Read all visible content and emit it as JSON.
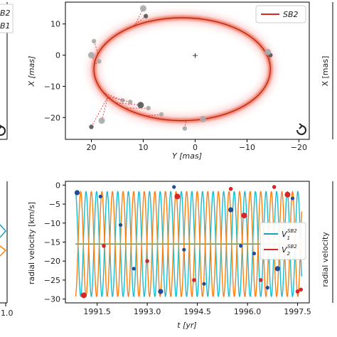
{
  "chart_data": [
    {
      "id": "orbit",
      "type": "scatter",
      "title": "",
      "xlabel": "Y [mas]",
      "ylabel": "X [mas]",
      "xlim": [
        25,
        -22
      ],
      "ylim": [
        -27,
        17
      ],
      "xticks": [
        20,
        10,
        0,
        -10,
        -20
      ],
      "xtick_labels": [
        "20",
        "10",
        "0",
        "−10",
        "−20"
      ],
      "yticks": [
        10,
        0,
        -10,
        -20
      ],
      "ytick_labels": [
        "10",
        "0",
        "−10",
        "−20"
      ],
      "legend": {
        "position": "top-right",
        "entries": [
          {
            "name": "SB2",
            "color": "#d62728"
          }
        ]
      },
      "orbit_color": "#d62728",
      "center": {
        "x": 0,
        "y": 0,
        "symbol": "+"
      },
      "ellipse": {
        "cx": 2.5,
        "cy": -4.5,
        "a": 16.5,
        "b": 16.5,
        "ry": 16.5,
        "rx": 17,
        "tilt_deg": 0
      },
      "points": [
        {
          "x": 10.0,
          "y": 15.0
        },
        {
          "x": 9.5,
          "y": 12.5
        },
        {
          "x": 19.5,
          "y": 4.5
        },
        {
          "x": 20.0,
          "y": 0.0
        },
        {
          "x": 18.5,
          "y": -2.0
        },
        {
          "x": -14.5,
          "y": 0.0
        },
        {
          "x": -14.0,
          "y": 1.0
        },
        {
          "x": 14.0,
          "y": -14.5
        },
        {
          "x": 12.5,
          "y": -15.0
        },
        {
          "x": 10.5,
          "y": -16.0
        },
        {
          "x": 9.0,
          "y": -17.0
        },
        {
          "x": 6.5,
          "y": -19.0
        },
        {
          "x": 18.0,
          "y": -21.0
        },
        {
          "x": 20.0,
          "y": -23.0
        },
        {
          "x": 2.0,
          "y": -23.5
        },
        {
          "x": -1.5,
          "y": -20.5
        }
      ]
    },
    {
      "id": "rv",
      "type": "line",
      "title": "",
      "xlabel": "t [yr]",
      "ylabel": "radial velocity [km/s]",
      "xlim": [
        1990.55,
        1997.85
      ],
      "ylim": [
        -31,
        1
      ],
      "xticks": [
        1991.5,
        1993.0,
        1994.5,
        1996.0,
        1997.5
      ],
      "xtick_labels": [
        "1991.5",
        "1993.0",
        "1994.5",
        "1996.0",
        "1997.5"
      ],
      "yticks": [
        0,
        -5,
        -10,
        -15,
        -20,
        -25,
        -30
      ],
      "ytick_labels": [
        "0",
        "−5",
        "−10",
        "−15",
        "−20",
        "−25",
        "−30"
      ],
      "legend": {
        "position": "right",
        "entries": [
          {
            "name": "V",
            "sub": "1",
            "sup": "SB2",
            "color": "#17a2b8"
          },
          {
            "name": "V",
            "sub": "2",
            "sup": "SB2",
            "color": "#d62728"
          }
        ]
      },
      "series": [
        {
          "name": "V1",
          "color": "#17becf",
          "t0": 1990.85,
          "period": 0.317,
          "mean": -15.5,
          "amp": 13.8,
          "phase": 0.0
        },
        {
          "name": "V2",
          "color": "#ff7f0e",
          "t0": 1990.85,
          "period": 0.317,
          "mean": -15.5,
          "amp": 13.8,
          "phase": 0.5
        }
      ],
      "points_v1": [
        {
          "x": 1990.9,
          "y": -2.0
        },
        {
          "x": 1991.6,
          "y": -3.0
        },
        {
          "x": 1992.2,
          "y": -10.5
        },
        {
          "x": 1992.6,
          "y": -22.0
        },
        {
          "x": 1993.4,
          "y": -28.0
        },
        {
          "x": 1993.8,
          "y": -0.5
        },
        {
          "x": 1994.1,
          "y": -17.0
        },
        {
          "x": 1994.7,
          "y": -26.0
        },
        {
          "x": 1995.5,
          "y": -6.5
        },
        {
          "x": 1995.8,
          "y": -16.0
        },
        {
          "x": 1996.2,
          "y": -18.0
        },
        {
          "x": 1996.6,
          "y": -27.0
        },
        {
          "x": 1996.9,
          "y": -22.0
        },
        {
          "x": 1997.1,
          "y": -13.5
        },
        {
          "x": 1997.35,
          "y": -3.5
        }
      ],
      "points_v2": [
        {
          "x": 1991.1,
          "y": -29.0
        },
        {
          "x": 1991.7,
          "y": -16.0
        },
        {
          "x": 1993.0,
          "y": -20.0
        },
        {
          "x": 1993.9,
          "y": -3.0
        },
        {
          "x": 1994.4,
          "y": -25.0
        },
        {
          "x": 1995.5,
          "y": -1.0
        },
        {
          "x": 1995.9,
          "y": -8.0
        },
        {
          "x": 1996.4,
          "y": -25.0
        },
        {
          "x": 1996.8,
          "y": -0.5
        },
        {
          "x": 1997.2,
          "y": -2.5
        },
        {
          "x": 1997.5,
          "y": -28.0
        },
        {
          "x": 1997.6,
          "y": -27.5
        }
      ]
    }
  ],
  "left_stub": {
    "legend_lines": [
      "B2",
      "B1"
    ],
    "tick_label": "1.0"
  },
  "right_stub": {
    "ylabel_top": "X [mas]",
    "ylabel_bottom": "radial velocity"
  },
  "rotate_icon": "rotate-arrow-icon",
  "legend_symbols": {
    "v": "V",
    "sub1": "1",
    "sub2": "2",
    "sup": "SB2"
  }
}
